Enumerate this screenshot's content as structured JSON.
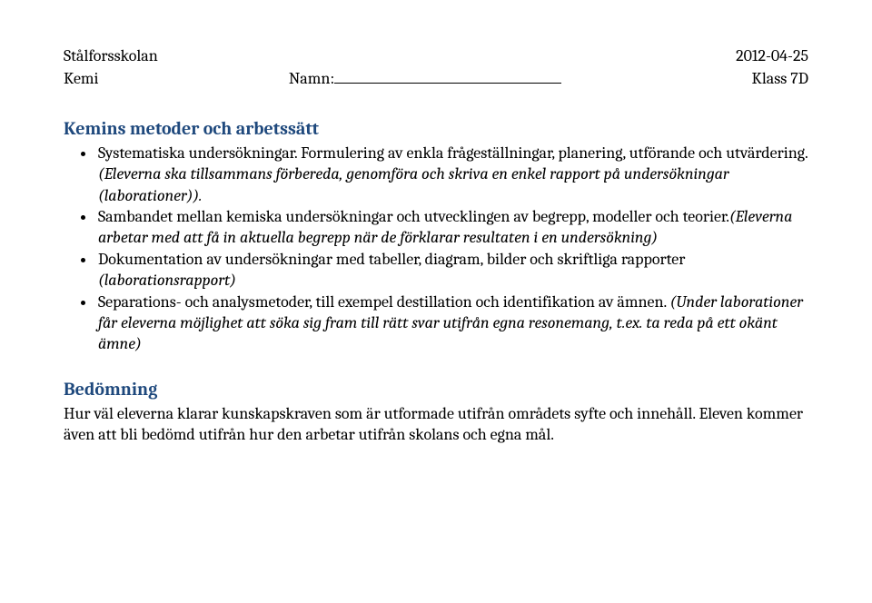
{
  "header": {
    "school": "Stålforsskolan",
    "date": "2012-04-25",
    "subject": "Kemi",
    "name_label": "Namn:",
    "class_label": "Klass 7D"
  },
  "section1": {
    "title": "Kemins metoder och arbetssätt",
    "bullets": {
      "b1a": "Systematiska undersökningar. Formulering av enkla frågeställningar, planering, utförande och utvärdering. ",
      "b1b": "(Eleverna ska tillsammans förbereda, genomföra och skriva en enkel rapport på undersökningar (laborationer)).",
      "b2a": "Sambandet mellan kemiska undersökningar och utvecklingen av begrepp, modeller och teorier.",
      "b2b": "(Eleverna arbetar med att få in aktuella begrepp när de förklarar resultaten i en undersökning)",
      "b3a": "Dokumentation av undersökningar med tabeller, diagram, bilder och skriftliga rapporter ",
      "b3b": "(laborationsrapport)",
      "b4a": "Separations- och analysmetoder, till exempel destillation och identifikation av ämnen. ",
      "b4b": "(Under laborationer får eleverna möjlighet att söka sig fram till rätt svar utifrån egna resonemang, t.ex. ta reda på ett okänt ämne)"
    }
  },
  "section2": {
    "title": "Bedömning",
    "body": "Hur väl eleverna klarar kunskapskraven som är utformade utifrån områdets syfte och innehåll. Eleven kommer även att bli bedömd utifrån hur den arbetar utifrån skolans och egna mål."
  }
}
